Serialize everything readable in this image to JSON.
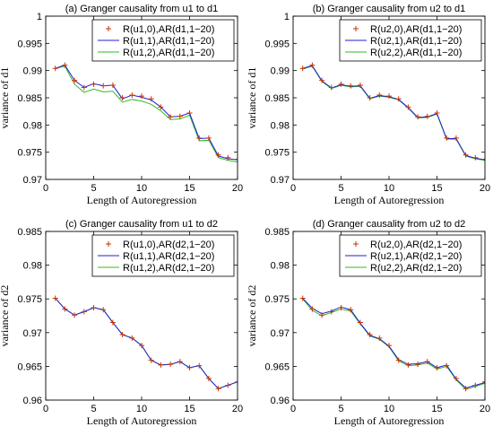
{
  "chart_data": [
    {
      "type": "line",
      "title": "(a) Granger causality from u1 to d1",
      "xlabel": "Length of Autoregression",
      "ylabel": "variance of d1",
      "xlim": [
        0,
        20
      ],
      "ylim": [
        0.97,
        1.0
      ],
      "xticks": [
        "0",
        "5",
        "10",
        "15",
        "20"
      ],
      "yticks": [
        "0.97",
        "0.975",
        "0.98",
        "0.985",
        "0.99",
        "0.995",
        "1"
      ],
      "legend_position": "top-right",
      "series": [
        {
          "name": "R(u1,0),AR(d1,1−20)",
          "color": "#cc3300",
          "style": "markers",
          "x": [
            1,
            2,
            3,
            4,
            5,
            6,
            7,
            8,
            9,
            10,
            11,
            12,
            13,
            14,
            15,
            16,
            17,
            18,
            19,
            20
          ],
          "y": [
            0.9904,
            0.991,
            0.9882,
            0.9869,
            0.9875,
            0.9872,
            0.9873,
            0.985,
            0.9855,
            0.9853,
            0.9848,
            0.9833,
            0.9815,
            0.9816,
            0.9822,
            0.9776,
            0.9776,
            0.9745,
            0.974,
            0.9737
          ]
        },
        {
          "name": "R(u1,1),AR(d1,1−20)",
          "color": "#1f1fd6",
          "style": "line",
          "x": [
            1,
            2,
            3,
            4,
            5,
            6,
            7,
            8,
            9,
            10,
            11,
            12,
            13,
            14,
            15,
            16,
            17,
            18,
            19,
            20
          ],
          "y": [
            0.9904,
            0.991,
            0.9882,
            0.9869,
            0.9876,
            0.9872,
            0.9873,
            0.9848,
            0.9855,
            0.9851,
            0.9846,
            0.9833,
            0.9815,
            0.9816,
            0.9822,
            0.9775,
            0.9776,
            0.9743,
            0.9738,
            0.9736
          ]
        },
        {
          "name": "R(u1,2),AR(d1,1−20)",
          "color": "#33bb22",
          "style": "line",
          "x": [
            1,
            2,
            3,
            4,
            5,
            6,
            7,
            8,
            9,
            10,
            11,
            12,
            13,
            14,
            15,
            16,
            17,
            18,
            19,
            20
          ],
          "y": [
            0.9904,
            0.9908,
            0.9875,
            0.986,
            0.9866,
            0.9861,
            0.9862,
            0.9842,
            0.9847,
            0.9844,
            0.9838,
            0.9826,
            0.981,
            0.9811,
            0.9818,
            0.9771,
            0.9772,
            0.974,
            0.9735,
            0.9732
          ]
        }
      ]
    },
    {
      "type": "line",
      "title": "(b) Granger causality from u2 to d1",
      "xlabel": "Length of Autoregression",
      "ylabel": "variance of d1",
      "xlim": [
        0,
        20
      ],
      "ylim": [
        0.97,
        1.0
      ],
      "xticks": [
        "0",
        "5",
        "10",
        "15",
        "20"
      ],
      "yticks": [
        "0.97",
        "0.975",
        "0.98",
        "0.985",
        "0.99",
        "0.995",
        "1"
      ],
      "legend_position": "top-right",
      "series": [
        {
          "name": "R(u2,0),AR(d1,1−20)",
          "color": "#cc3300",
          "style": "markers",
          "x": [
            1,
            2,
            3,
            4,
            5,
            6,
            7,
            8,
            9,
            10,
            11,
            12,
            13,
            14,
            15,
            16,
            17,
            18,
            19,
            20
          ],
          "y": [
            0.9904,
            0.991,
            0.9882,
            0.9869,
            0.9875,
            0.9872,
            0.9873,
            0.985,
            0.9855,
            0.9853,
            0.9848,
            0.9833,
            0.9815,
            0.9816,
            0.9822,
            0.9776,
            0.9776,
            0.9745,
            0.974,
            0.9737
          ]
        },
        {
          "name": "R(u2,1),AR(d1,1−20)",
          "color": "#1f1fd6",
          "style": "line",
          "x": [
            1,
            2,
            3,
            4,
            5,
            6,
            7,
            8,
            9,
            10,
            11,
            12,
            13,
            14,
            15,
            16,
            17,
            18,
            19,
            20
          ],
          "y": [
            0.9904,
            0.9909,
            0.9881,
            0.9868,
            0.9874,
            0.9871,
            0.9872,
            0.9849,
            0.9854,
            0.9852,
            0.9847,
            0.9832,
            0.9814,
            0.9815,
            0.9821,
            0.9775,
            0.9775,
            0.9744,
            0.9739,
            0.9736
          ]
        },
        {
          "name": "R(u2,2),AR(d1,1−20)",
          "color": "#33bb22",
          "style": "line",
          "x": [
            1,
            2,
            3,
            4,
            5,
            6,
            7,
            8,
            9,
            10,
            11,
            12,
            13,
            14,
            15,
            16,
            17,
            18,
            19,
            20
          ],
          "y": [
            0.9903,
            0.9908,
            0.988,
            0.9867,
            0.9873,
            0.987,
            0.9871,
            0.9848,
            0.9853,
            0.9851,
            0.9846,
            0.9831,
            0.9813,
            0.9814,
            0.982,
            0.9774,
            0.9774,
            0.9743,
            0.9738,
            0.9735
          ]
        }
      ]
    },
    {
      "type": "line",
      "title": "(c) Granger causality from u1 to d2",
      "xlabel": "Length of Autoregression",
      "ylabel": "variance of d2",
      "xlim": [
        0,
        20
      ],
      "ylim": [
        0.96,
        0.985
      ],
      "xticks": [
        "0",
        "5",
        "10",
        "15",
        "20"
      ],
      "yticks": [
        "0.96",
        "0.965",
        "0.97",
        "0.975",
        "0.98",
        "0.985"
      ],
      "legend_position": "top-right",
      "series": [
        {
          "name": "R(u1,0),AR(d2,1−20)",
          "color": "#cc3300",
          "style": "markers",
          "x": [
            1,
            2,
            3,
            4,
            5,
            6,
            7,
            8,
            9,
            10,
            11,
            12,
            13,
            14,
            15,
            16,
            17,
            18,
            19,
            20
          ],
          "y": [
            0.9751,
            0.9735,
            0.9726,
            0.9731,
            0.9737,
            0.9734,
            0.9715,
            0.9697,
            0.9692,
            0.9681,
            0.9659,
            0.9652,
            0.9653,
            0.9657,
            0.9648,
            0.9651,
            0.9632,
            0.9617,
            0.9622,
            0.9627
          ]
        },
        {
          "name": "R(u1,1),AR(d2,1−20)",
          "color": "#1f1fd6",
          "style": "line",
          "x": [
            1,
            2,
            3,
            4,
            5,
            6,
            7,
            8,
            9,
            10,
            11,
            12,
            13,
            14,
            15,
            16,
            17,
            18,
            19,
            20
          ],
          "y": [
            0.9751,
            0.9735,
            0.9726,
            0.9731,
            0.9737,
            0.9734,
            0.9715,
            0.9697,
            0.9692,
            0.9681,
            0.9659,
            0.9652,
            0.9653,
            0.9657,
            0.9648,
            0.9651,
            0.9632,
            0.9617,
            0.9622,
            0.9627
          ]
        },
        {
          "name": "R(u1,2),AR(d2,1−20)",
          "color": "#33bb22",
          "style": "line",
          "x": [
            1,
            2,
            3,
            4,
            5,
            6,
            7,
            8,
            9,
            10,
            11,
            12,
            13,
            14,
            15,
            16,
            17,
            18,
            19,
            20
          ],
          "y": [
            0.9751,
            0.9735,
            0.9726,
            0.9731,
            0.9737,
            0.9734,
            0.9715,
            0.9697,
            0.9692,
            0.9681,
            0.9659,
            0.9652,
            0.9653,
            0.9657,
            0.9648,
            0.9651,
            0.9632,
            0.9617,
            0.9622,
            0.9627
          ]
        }
      ]
    },
    {
      "type": "line",
      "title": "(d) Granger causality from u2 to d2",
      "xlabel": "Length of Autoregression",
      "ylabel": "variance of d2",
      "xlim": [
        0,
        20
      ],
      "ylim": [
        0.96,
        0.985
      ],
      "xticks": [
        "0",
        "5",
        "10",
        "15",
        "20"
      ],
      "yticks": [
        "0.96",
        "0.965",
        "0.97",
        "0.975",
        "0.98",
        "0.985"
      ],
      "legend_position": "top-right",
      "series": [
        {
          "name": "R(u2,0),AR(d2,1−20)",
          "color": "#cc3300",
          "style": "markers",
          "x": [
            1,
            2,
            3,
            4,
            5,
            6,
            7,
            8,
            9,
            10,
            11,
            12,
            13,
            14,
            15,
            16,
            17,
            18,
            19,
            20
          ],
          "y": [
            0.9751,
            0.9735,
            0.9726,
            0.9731,
            0.9737,
            0.9734,
            0.9715,
            0.9697,
            0.9692,
            0.9681,
            0.9659,
            0.9652,
            0.9653,
            0.9657,
            0.9648,
            0.9651,
            0.9632,
            0.9617,
            0.9622,
            0.9627
          ]
        },
        {
          "name": "R(u2,1),AR(d2,1−20)",
          "color": "#1f1fd6",
          "style": "line",
          "x": [
            1,
            2,
            3,
            4,
            5,
            6,
            7,
            8,
            9,
            10,
            11,
            12,
            13,
            14,
            15,
            16,
            17,
            18,
            19,
            20
          ],
          "y": [
            0.9751,
            0.9736,
            0.9728,
            0.9732,
            0.9738,
            0.9734,
            0.9714,
            0.9696,
            0.9691,
            0.968,
            0.966,
            0.9653,
            0.9654,
            0.9657,
            0.9648,
            0.9652,
            0.9631,
            0.9618,
            0.9622,
            0.9626
          ]
        },
        {
          "name": "R(u2,2),AR(d2,1−20)",
          "color": "#33bb22",
          "style": "line",
          "x": [
            1,
            2,
            3,
            4,
            5,
            6,
            7,
            8,
            9,
            10,
            11,
            12,
            13,
            14,
            15,
            16,
            17,
            18,
            19,
            20
          ],
          "y": [
            0.975,
            0.9733,
            0.9725,
            0.973,
            0.9735,
            0.9732,
            0.9713,
            0.9695,
            0.969,
            0.9679,
            0.9658,
            0.9651,
            0.9652,
            0.9655,
            0.9646,
            0.965,
            0.963,
            0.9616,
            0.962,
            0.9625
          ]
        }
      ]
    }
  ]
}
